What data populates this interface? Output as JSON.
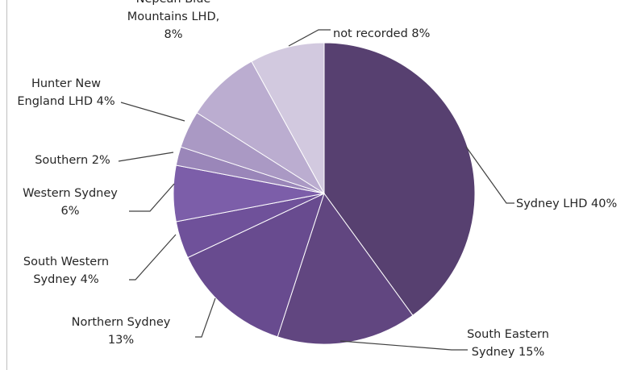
{
  "chart_data": {
    "type": "pie",
    "title": "",
    "slices": [
      {
        "label_lines": [
          "Sydney LHD 40%"
        ],
        "value": 40,
        "color": "#574070"
      },
      {
        "label_lines": [
          "South Eastern",
          "Sydney 15%"
        ],
        "value": 15,
        "color": "#614680"
      },
      {
        "label_lines": [
          "Northern Sydney",
          "13%"
        ],
        "value": 13,
        "color": "#684b8f"
      },
      {
        "label_lines": [
          "South Western",
          "Sydney 4%"
        ],
        "value": 4,
        "color": "#6f519a"
      },
      {
        "label_lines": [
          "Western Sydney",
          "6%"
        ],
        "value": 6,
        "color": "#7c5ea9"
      },
      {
        "label_lines": [
          "Southern 2%"
        ],
        "value": 2,
        "color": "#9a86b9"
      },
      {
        "label_lines": [
          "Hunter New",
          "England LHD 4%"
        ],
        "value": 4,
        "color": "#aa99c4"
      },
      {
        "label_lines": [
          "Nepean Blue",
          "Mountains LHD,",
          "8%"
        ],
        "value": 8,
        "color": "#bbadd0"
      },
      {
        "label_lines": [
          "not recorded 8%"
        ],
        "value": 8,
        "color": "#d2c9df"
      }
    ],
    "start_angle_deg": 0,
    "direction": "clockwise"
  }
}
